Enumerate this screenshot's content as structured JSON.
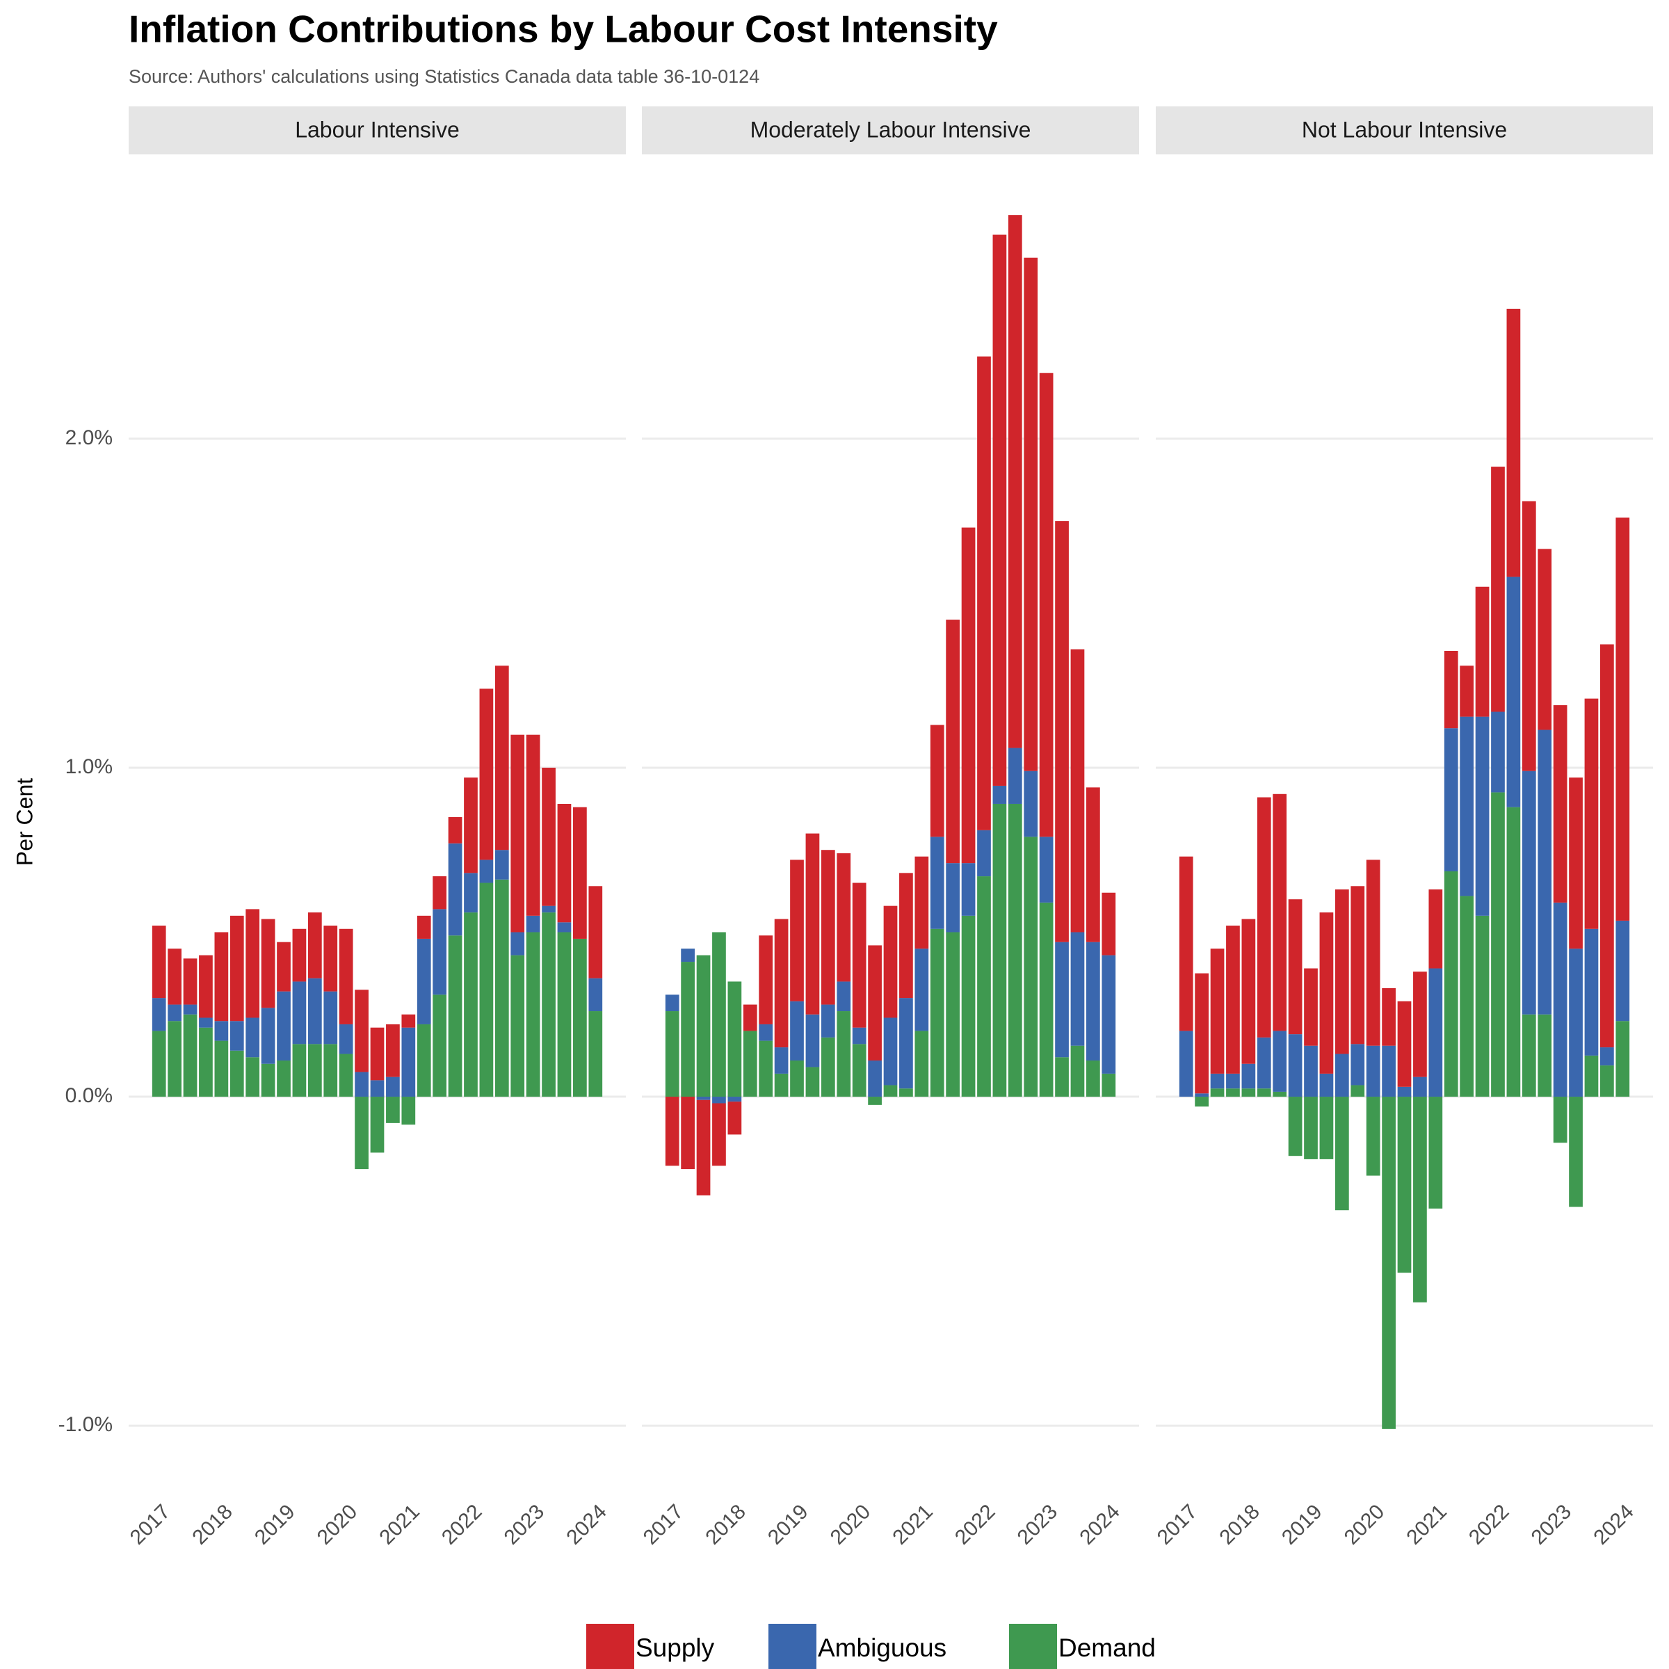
{
  "chart_data": {
    "type": "bar",
    "stacked": true,
    "title": "Inflation Contributions by Labour Cost Intensity",
    "subtitle": "Source: Authors' calculations using Statistics Canada data table 36-10-0124",
    "y_label": "Per Cent",
    "categories": [
      "2017",
      null,
      null,
      null,
      "2018",
      null,
      null,
      null,
      "2019",
      null,
      null,
      null,
      "2020",
      null,
      null,
      null,
      "2021",
      null,
      null,
      null,
      "2022",
      null,
      null,
      null,
      "2023",
      null,
      null,
      null,
      "2024"
    ],
    "ylim": [
      -1.19,
      2.86
    ],
    "yticks": [
      {
        "value": -1,
        "label": "-1.0%"
      },
      {
        "value": 0,
        "label": "0.0%"
      },
      {
        "value": 1,
        "label": "1.0%"
      },
      {
        "value": 2,
        "label": "2.0%"
      }
    ],
    "grid": true,
    "legend": "bottom",
    "series": [
      {
        "name": "Supply",
        "color": "#d0252b"
      },
      {
        "name": "Ambiguous",
        "color": "#3a67ae"
      },
      {
        "name": "Demand",
        "color": "#3f9950"
      }
    ],
    "facets": [
      {
        "title": "Labour Intensive",
        "values": [
          [
            0.22,
            0.17,
            0.14,
            0.19,
            0.27,
            0.32,
            0.33,
            0.27,
            0.15,
            0.16,
            0.2,
            0.2,
            0.29,
            0.25,
            0.16,
            0.16,
            0.04,
            0.07,
            0.1,
            0.08,
            0.29,
            0.52,
            0.56,
            0.6,
            0.55,
            0.42,
            0.36,
            0.4,
            0.28
          ],
          [
            0.1,
            0.05,
            0.03,
            0.03,
            0.06,
            0.09,
            0.12,
            0.17,
            0.21,
            0.19,
            0.2,
            0.16,
            0.09,
            0.075,
            0.05,
            0.06,
            0.21,
            0.26,
            0.26,
            0.28,
            0.12,
            0.07,
            0.09,
            0.07,
            0.05,
            0.02,
            0.03,
            0,
            0.1
          ],
          [
            0.2,
            0.23,
            0.25,
            0.21,
            0.17,
            0.14,
            0.12,
            0.1,
            0.11,
            0.16,
            0.16,
            0.16,
            0.13,
            -0.22,
            -0.17,
            -0.08,
            -0.085,
            0.22,
            0.31,
            0.49,
            0.56,
            0.65,
            0.66,
            0.43,
            0.5,
            0.56,
            0.5,
            0.48,
            0.26
          ]
        ]
      },
      {
        "title": "Moderately Labour Intensive",
        "values": [
          [
            -0.21,
            -0.22,
            -0.29,
            -0.19,
            -0.1,
            0.08,
            0.27,
            0.39,
            0.43,
            0.55,
            0.47,
            0.39,
            0.44,
            0.35,
            0.34,
            0.38,
            0.28,
            0.34,
            0.74,
            1.02,
            1.44,
            1.675,
            1.62,
            1.56,
            1.41,
            1.28,
            0.86,
            0.47,
            0.19
          ],
          [
            0.05,
            0.04,
            -0.01,
            -0.02,
            -0.015,
            0,
            0.05,
            0.08,
            0.18,
            0.16,
            0.1,
            0.09,
            0.05,
            0.11,
            0.205,
            0.275,
            0.25,
            0.28,
            0.21,
            0.16,
            0.14,
            0.055,
            0.17,
            0.2,
            0.2,
            0.35,
            0.345,
            0.36,
            0.36
          ],
          [
            0.26,
            0.41,
            0.43,
            0.5,
            0.35,
            0.2,
            0.17,
            0.07,
            0.11,
            0.09,
            0.18,
            0.26,
            0.16,
            -0.025,
            0.035,
            0.025,
            0.2,
            0.51,
            0.5,
            0.55,
            0.67,
            0.89,
            0.89,
            0.79,
            0.59,
            0.12,
            0.155,
            0.11,
            0.07
          ]
        ]
      },
      {
        "title": "Not Labour Intensive",
        "values": [
          [
            0.53,
            0.365,
            0.38,
            0.45,
            0.44,
            0.73,
            0.72,
            0.41,
            0.235,
            0.49,
            0.5,
            0.48,
            0.565,
            0.175,
            0.26,
            0.32,
            0.24,
            0.235,
            0.155,
            0.395,
            0.745,
            0.815,
            0.82,
            0.55,
            0.6,
            0.52,
            0.7,
            1.225,
            1.225
          ],
          [
            0.2,
            0.01,
            0.045,
            0.045,
            0.075,
            0.155,
            0.185,
            0.19,
            0.155,
            0.07,
            0.13,
            0.125,
            0.155,
            0.155,
            0.03,
            0.06,
            0.39,
            0.435,
            0.545,
            0.605,
            0.245,
            0.7,
            0.74,
            0.865,
            0.59,
            0.45,
            0.385,
            0.055,
            0.305
          ],
          [
            0,
            -0.03,
            0.025,
            0.025,
            0.025,
            0.025,
            0.015,
            -0.18,
            -0.19,
            -0.19,
            -0.345,
            0.035,
            -0.24,
            -1.01,
            -0.535,
            -0.625,
            -0.34,
            0.685,
            0.61,
            0.55,
            0.925,
            0.88,
            0.25,
            0.25,
            -0.14,
            -0.335,
            0.125,
            0.095,
            0.23
          ]
        ]
      }
    ]
  }
}
